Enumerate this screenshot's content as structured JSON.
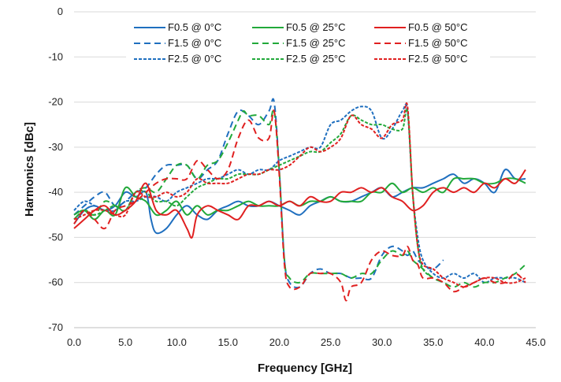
{
  "chart_data": {
    "type": "line",
    "title": "",
    "xlabel": "Frequency [GHz]",
    "ylabel": "Harmonics [dBc]",
    "xlim": [
      0,
      45
    ],
    "ylim": [
      -70,
      0
    ],
    "xticks": [
      0,
      5,
      10,
      15,
      20,
      25,
      30,
      35,
      40,
      45
    ],
    "xtick_labels": [
      "0.0",
      "5.0",
      "10.0",
      "15.0",
      "20.0",
      "25.0",
      "30.0",
      "35.0",
      "40.0",
      "45.0"
    ],
    "yticks": [
      0,
      -10,
      -20,
      -30,
      -40,
      -50,
      -60,
      -70
    ],
    "ytick_labels": [
      "0",
      "-10",
      "-20",
      "-30",
      "-40",
      "-50",
      "-60",
      "-70"
    ],
    "grid": true,
    "legend_position": "top-center",
    "series": [
      {
        "name": "F0.5 @ 0°C",
        "color": "#1f6fbf",
        "dash": "solid",
        "x": [
          0,
          1,
          2,
          3,
          4,
          5,
          6,
          7,
          7.5,
          8,
          9,
          10,
          11,
          12,
          13,
          14,
          15,
          16,
          17,
          18,
          19,
          20,
          21,
          22,
          23,
          24,
          25,
          26,
          27,
          28,
          29,
          30,
          31,
          32,
          33,
          34,
          35,
          36,
          37,
          38,
          39,
          40,
          41,
          42,
          43,
          44
        ],
        "y": [
          -47,
          -44,
          -43,
          -44,
          -43,
          -40,
          -41,
          -40,
          -46,
          -49,
          -48,
          -45,
          -43,
          -45,
          -46,
          -44,
          -43,
          -42,
          -43,
          -43,
          -42,
          -43,
          -44,
          -45,
          -43,
          -42,
          -41,
          -42,
          -42,
          -41,
          -40,
          -39,
          -41,
          -40,
          -39,
          -39,
          -38,
          -37,
          -36,
          -38,
          -37,
          -38,
          -40,
          -35,
          -37,
          -37
        ]
      },
      {
        "name": "F1.5 @ 0°C",
        "color": "#1f6fbf",
        "dash": "dash",
        "x": [
          0,
          1,
          2,
          3,
          4,
          5,
          6,
          7,
          8,
          9,
          10,
          11,
          12,
          13,
          14,
          15,
          16,
          17,
          18,
          19,
          19.5,
          20,
          20.5,
          21,
          22,
          23,
          24,
          25,
          26,
          27,
          28,
          29,
          30,
          31,
          32,
          32.5,
          33,
          33.5,
          34,
          35,
          36
        ],
        "y": [
          -45,
          -43,
          -41,
          -40,
          -43,
          -42,
          -40,
          -39,
          -36,
          -34,
          -34,
          -34,
          -37,
          -35,
          -33,
          -27,
          -22,
          -23,
          -25,
          -22,
          -20,
          -35,
          -55,
          -60,
          -61,
          -58,
          -57,
          -58,
          -58,
          -59,
          -59,
          -59,
          -54,
          -52,
          -53,
          -54,
          -53,
          -55,
          -56,
          -57,
          -55
        ]
      },
      {
        "name": "F2.5 @ 0°C",
        "color": "#1f6fbf",
        "dash": "dashdot",
        "x": [
          0,
          1,
          2,
          3,
          4,
          5,
          6,
          7,
          8,
          9,
          10,
          11,
          12,
          13,
          14,
          15,
          16,
          17,
          18,
          19,
          20,
          21,
          22,
          23,
          24,
          25,
          26,
          27,
          28,
          29,
          30,
          31,
          32,
          32.5,
          33,
          33.5,
          34,
          35,
          36,
          37,
          38,
          39,
          40,
          41,
          42,
          43,
          44
        ],
        "y": [
          -44,
          -42,
          -43,
          -44,
          -44,
          -42,
          -42,
          -41,
          -41,
          -42,
          -40,
          -39,
          -38,
          -37,
          -37,
          -36,
          -35,
          -36,
          -35,
          -35,
          -33,
          -32,
          -31,
          -30,
          -30,
          -25,
          -24,
          -22,
          -21,
          -22,
          -28,
          -26,
          -22,
          -22,
          -40,
          -50,
          -55,
          -58,
          -59,
          -58,
          -59,
          -58,
          -60,
          -59,
          -59,
          -59,
          -60
        ]
      },
      {
        "name": "F0.5 @ 25°C",
        "color": "#22a93a",
        "dash": "solid",
        "x": [
          0,
          1,
          2,
          3,
          4,
          5,
          6,
          7,
          8,
          9,
          10,
          11,
          12,
          13,
          14,
          15,
          16,
          17,
          18,
          19,
          20,
          21,
          22,
          23,
          24,
          25,
          26,
          27,
          28,
          29,
          30,
          31,
          32,
          33,
          34,
          35,
          36,
          37,
          38,
          39,
          40,
          41,
          42,
          43,
          44
        ],
        "y": [
          -45,
          -44,
          -46,
          -44,
          -45,
          -39,
          -41,
          -42,
          -45,
          -44,
          -42,
          -45,
          -43,
          -45,
          -44,
          -44,
          -43,
          -42,
          -43,
          -43,
          -43,
          -42,
          -43,
          -42,
          -42,
          -41,
          -42,
          -42,
          -42,
          -40,
          -40,
          -38,
          -40,
          -39,
          -40,
          -39,
          -40,
          -37,
          -37,
          -37,
          -38,
          -38,
          -37,
          -37,
          -38
        ]
      },
      {
        "name": "F1.5 @ 25°C",
        "color": "#22a93a",
        "dash": "dash",
        "x": [
          0,
          1,
          2,
          3,
          4,
          5,
          6,
          7,
          8,
          9,
          10,
          11,
          12,
          13,
          14,
          15,
          16,
          16.5,
          17,
          18,
          19,
          19.5,
          20,
          20.5,
          21,
          22,
          23,
          24,
          25,
          26,
          27,
          28,
          29,
          30,
          31,
          32,
          32.5,
          33,
          33.5,
          34,
          35,
          36,
          37,
          38,
          39,
          40,
          41,
          42,
          43,
          44
        ],
        "y": [
          -46,
          -44,
          -45,
          -42,
          -43,
          -44,
          -40,
          -39,
          -40,
          -37,
          -34,
          -34,
          -37,
          -34,
          -33,
          -29,
          -24,
          -22,
          -23,
          -23,
          -25,
          -22,
          -35,
          -55,
          -59,
          -60,
          -58,
          -58,
          -58,
          -58,
          -59,
          -58,
          -58,
          -55,
          -53,
          -54,
          -53,
          -55,
          -56,
          -57,
          -59,
          -60,
          -61,
          -60,
          -61,
          -60,
          -60,
          -59,
          -58,
          -56
        ]
      },
      {
        "name": "F2.5 @ 25°C",
        "color": "#22a93a",
        "dash": "dashdot",
        "x": [
          0,
          1,
          2,
          3,
          4,
          5,
          6,
          7,
          8,
          9,
          10,
          11,
          12,
          13,
          14,
          15,
          16,
          17,
          18,
          19,
          20,
          21,
          22,
          23,
          24,
          25,
          26,
          27,
          28,
          29,
          30,
          31,
          32,
          32.5,
          33,
          33.5,
          34,
          35
        ],
        "y": [
          -46,
          -44,
          -45,
          -44,
          -43,
          -44,
          -40,
          -40,
          -42,
          -42,
          -43,
          -41,
          -39,
          -38,
          -37,
          -37,
          -36,
          -36,
          -36,
          -35,
          -34,
          -33,
          -32,
          -31,
          -31,
          -29,
          -27,
          -23,
          -24,
          -25,
          -25,
          -26,
          -26,
          -22,
          -40,
          -52,
          -57,
          -59
        ]
      },
      {
        "name": "F0.5 @ 50°C",
        "color": "#e02020",
        "dash": "solid",
        "x": [
          0,
          1,
          2,
          3,
          4,
          5,
          6,
          7,
          8,
          9,
          10,
          11,
          11.5,
          12,
          13,
          14,
          15,
          16,
          17,
          18,
          19,
          20,
          21,
          22,
          23,
          24,
          25,
          26,
          27,
          28,
          29,
          30,
          31,
          32,
          33,
          34,
          35,
          36,
          37,
          38,
          39,
          40,
          41,
          42,
          43,
          44
        ],
        "y": [
          -48,
          -46,
          -44,
          -43,
          -45,
          -44,
          -42,
          -38,
          -44,
          -45,
          -44,
          -48,
          -50,
          -45,
          -43,
          -44,
          -45,
          -46,
          -43,
          -43,
          -42,
          -43,
          -42,
          -43,
          -41,
          -42,
          -42,
          -40,
          -40,
          -39,
          -40,
          -39,
          -41,
          -42,
          -44,
          -43,
          -40,
          -39,
          -40,
          -39,
          -40,
          -38,
          -39,
          -37,
          -38,
          -35
        ]
      },
      {
        "name": "F1.5 @ 50°C",
        "color": "#e02020",
        "dash": "dash",
        "x": [
          0,
          1,
          2,
          3,
          4,
          5,
          6,
          7,
          8,
          9,
          10,
          11,
          12,
          13,
          14,
          15,
          16,
          17,
          18,
          19,
          19.5,
          20,
          20.5,
          21,
          22,
          23,
          24,
          25,
          26,
          26.5,
          27,
          28,
          29,
          30,
          31,
          32,
          32.5,
          33,
          33.5,
          34,
          35,
          36,
          37,
          38,
          39,
          40,
          41,
          42,
          43,
          44
        ],
        "y": [
          -47,
          -44,
          -46,
          -48,
          -44,
          -43,
          -42,
          -40,
          -38,
          -37,
          -37,
          -37,
          -33,
          -35,
          -37,
          -35,
          -28,
          -24,
          -28,
          -28,
          -22,
          -36,
          -56,
          -61,
          -61,
          -58,
          -58,
          -58,
          -60,
          -64,
          -61,
          -60,
          -55,
          -53,
          -54,
          -54,
          -52,
          -55,
          -56,
          -59,
          -59,
          -60,
          -62,
          -61,
          -60,
          -59,
          -60,
          -60,
          -58,
          -60
        ]
      },
      {
        "name": "F2.5 @ 50°C",
        "color": "#e02020",
        "dash": "dashdot",
        "x": [
          0,
          1,
          2,
          3,
          4,
          5,
          6,
          7,
          8,
          9,
          10,
          11,
          12,
          13,
          14,
          15,
          16,
          17,
          18,
          19,
          20,
          21,
          22,
          23,
          24,
          25,
          26,
          27,
          28,
          29,
          30,
          31,
          32,
          32.5,
          33,
          33.5,
          34,
          35,
          36,
          37,
          38,
          39,
          40,
          41,
          42,
          43,
          44
        ],
        "y": [
          -46,
          -45,
          -44,
          -44,
          -45,
          -45,
          -40,
          -41,
          -41,
          -40,
          -41,
          -40,
          -37,
          -38,
          -38,
          -38,
          -37,
          -36,
          -36,
          -35,
          -35,
          -34,
          -32,
          -30,
          -31,
          -30,
          -28,
          -23,
          -25,
          -26,
          -28,
          -25,
          -24,
          -21,
          -40,
          -52,
          -56,
          -57,
          -59,
          -60,
          -61,
          -60,
          -59,
          -59,
          -60,
          -60,
          -59
        ]
      }
    ]
  }
}
